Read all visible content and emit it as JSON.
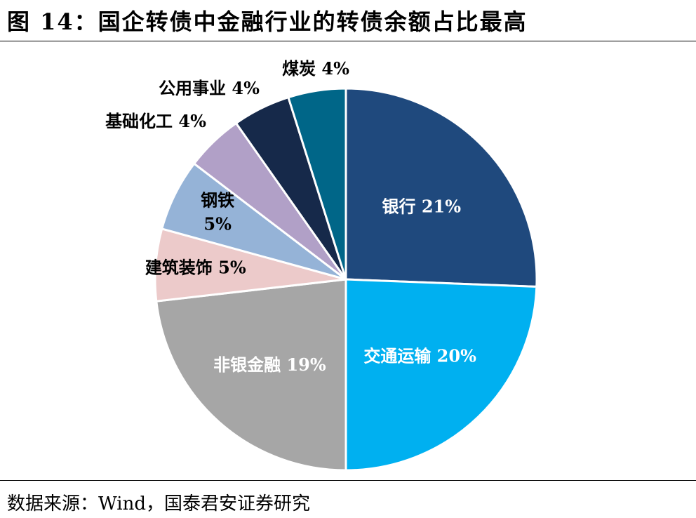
{
  "figure": {
    "title": "图 14：国企转债中金融行业的转债余额占比最高",
    "source": "数据来源：Wind，国泰君安证券研究"
  },
  "chart_data": {
    "type": "pie",
    "start_angle_deg": 0,
    "direction": "clockwise",
    "slices": [
      {
        "label": "银行",
        "value": 21,
        "color": "#1f497d",
        "label_color": "#ffffff",
        "pct_text": "21%"
      },
      {
        "label": "交通运输",
        "value": 20,
        "color": "#00b0f0",
        "label_color": "#ffffff",
        "pct_text": "20%"
      },
      {
        "label": "非银金融",
        "value": 19,
        "color": "#a6a6a6",
        "label_color": "#ffffff",
        "pct_text": "19%"
      },
      {
        "label": "建筑装饰",
        "value": 5,
        "color": "#eccaca",
        "label_color": "#000000",
        "pct_text": "5%"
      },
      {
        "label": "钢铁",
        "value": 5,
        "color": "#95b3d7",
        "label_color": "#000000",
        "pct_text": "5%"
      },
      {
        "label": "基础化工",
        "value": 4,
        "color": "#b1a0c7",
        "label_color": "#000000",
        "pct_text": "4%"
      },
      {
        "label": "公用事业",
        "value": 4,
        "color": "#16294a",
        "label_color": "#000000",
        "pct_text": "4%"
      },
      {
        "label": "煤炭",
        "value": 4,
        "color": "#006688",
        "label_color": "#000000",
        "pct_text": "4%"
      }
    ]
  }
}
